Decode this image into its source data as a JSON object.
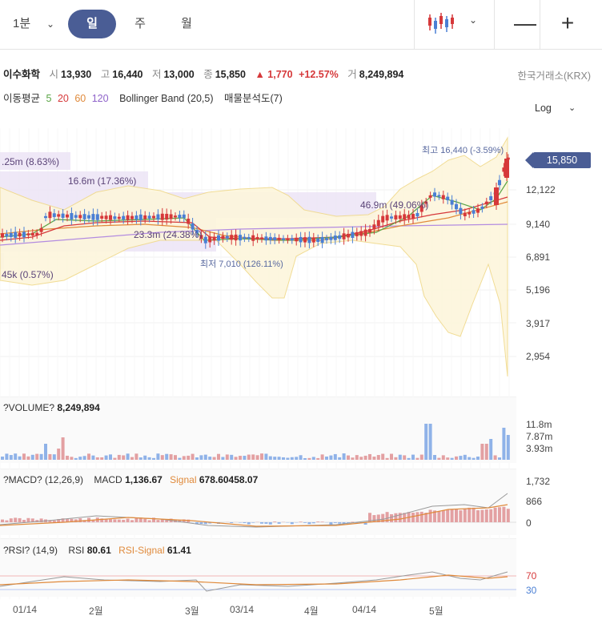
{
  "toolbar": {
    "timeframes": [
      {
        "label": "1분",
        "active": false
      },
      {
        "label": "일",
        "active": true
      },
      {
        "label": "주",
        "active": false
      },
      {
        "label": "월",
        "active": false
      }
    ],
    "chart_type_icon": "candlestick-icon",
    "zoom_out": "—",
    "zoom_in": "+",
    "colors": {
      "active_bg": "#4a5d95",
      "up": "#d6383a",
      "down": "#4a7fd4"
    }
  },
  "quote": {
    "name": "이수화학",
    "open_label": "시",
    "open": "13,930",
    "high_label": "고",
    "high": "16,440",
    "low_label": "저",
    "low": "13,000",
    "close_label": "종",
    "close": "15,850",
    "change": "▲ 1,770",
    "change_pct": "+12.57%",
    "volume_label": "거",
    "volume": "8,249,894",
    "exchange": "한국거래소(KRX)"
  },
  "indicators": {
    "ma_label": "이동평균",
    "ma5": "5",
    "ma20": "20",
    "ma60": "60",
    "ma120": "120",
    "bollinger": "Bollinger Band (20,5)",
    "volume_profile": "매물분석도(7)",
    "scale_mode": "Log"
  },
  "chart_data": {
    "type": "candlestick",
    "price_axis_ticks": [
      "12,122",
      "9,140",
      "6,891",
      "5,196",
      "3,917",
      "2,954"
    ],
    "current_price": "15,850",
    "high_marker": "최고 16,440 (-3.59%)",
    "low_marker": "최저 7,010 (126.11%)",
    "volume_profile_bars": [
      {
        "label": ".25m (8.63%)"
      },
      {
        "label": "16.6m (17.36%)"
      },
      {
        "label": "46.9m (49.06%)"
      },
      {
        "label": "23.3m (24.38%)"
      },
      {
        "label": "45k (0.57%)"
      }
    ],
    "x_labels": [
      "01/14",
      "2월",
      "3월",
      "03/14",
      "4월",
      "04/14",
      "5월"
    ],
    "volume": {
      "title": "?VOLUME?",
      "value": "8,249,894",
      "ticks": [
        "11.8m",
        "7.87m",
        "3.93m"
      ]
    },
    "macd": {
      "title": "?MACD? (12,26,9)",
      "macd_label": "MACD",
      "macd_value": "1,136.67",
      "signal_label": "Signal",
      "signal_value": "678.60458.07",
      "ticks": [
        "1,732",
        "866",
        "0"
      ]
    },
    "rsi": {
      "title": "?RSI? (14,9)",
      "rsi_label": "RSI",
      "rsi_value": "80.61",
      "signal_label": "RSI-Signal",
      "signal_value": "61.41",
      "ticks": [
        "70",
        "30"
      ]
    }
  }
}
